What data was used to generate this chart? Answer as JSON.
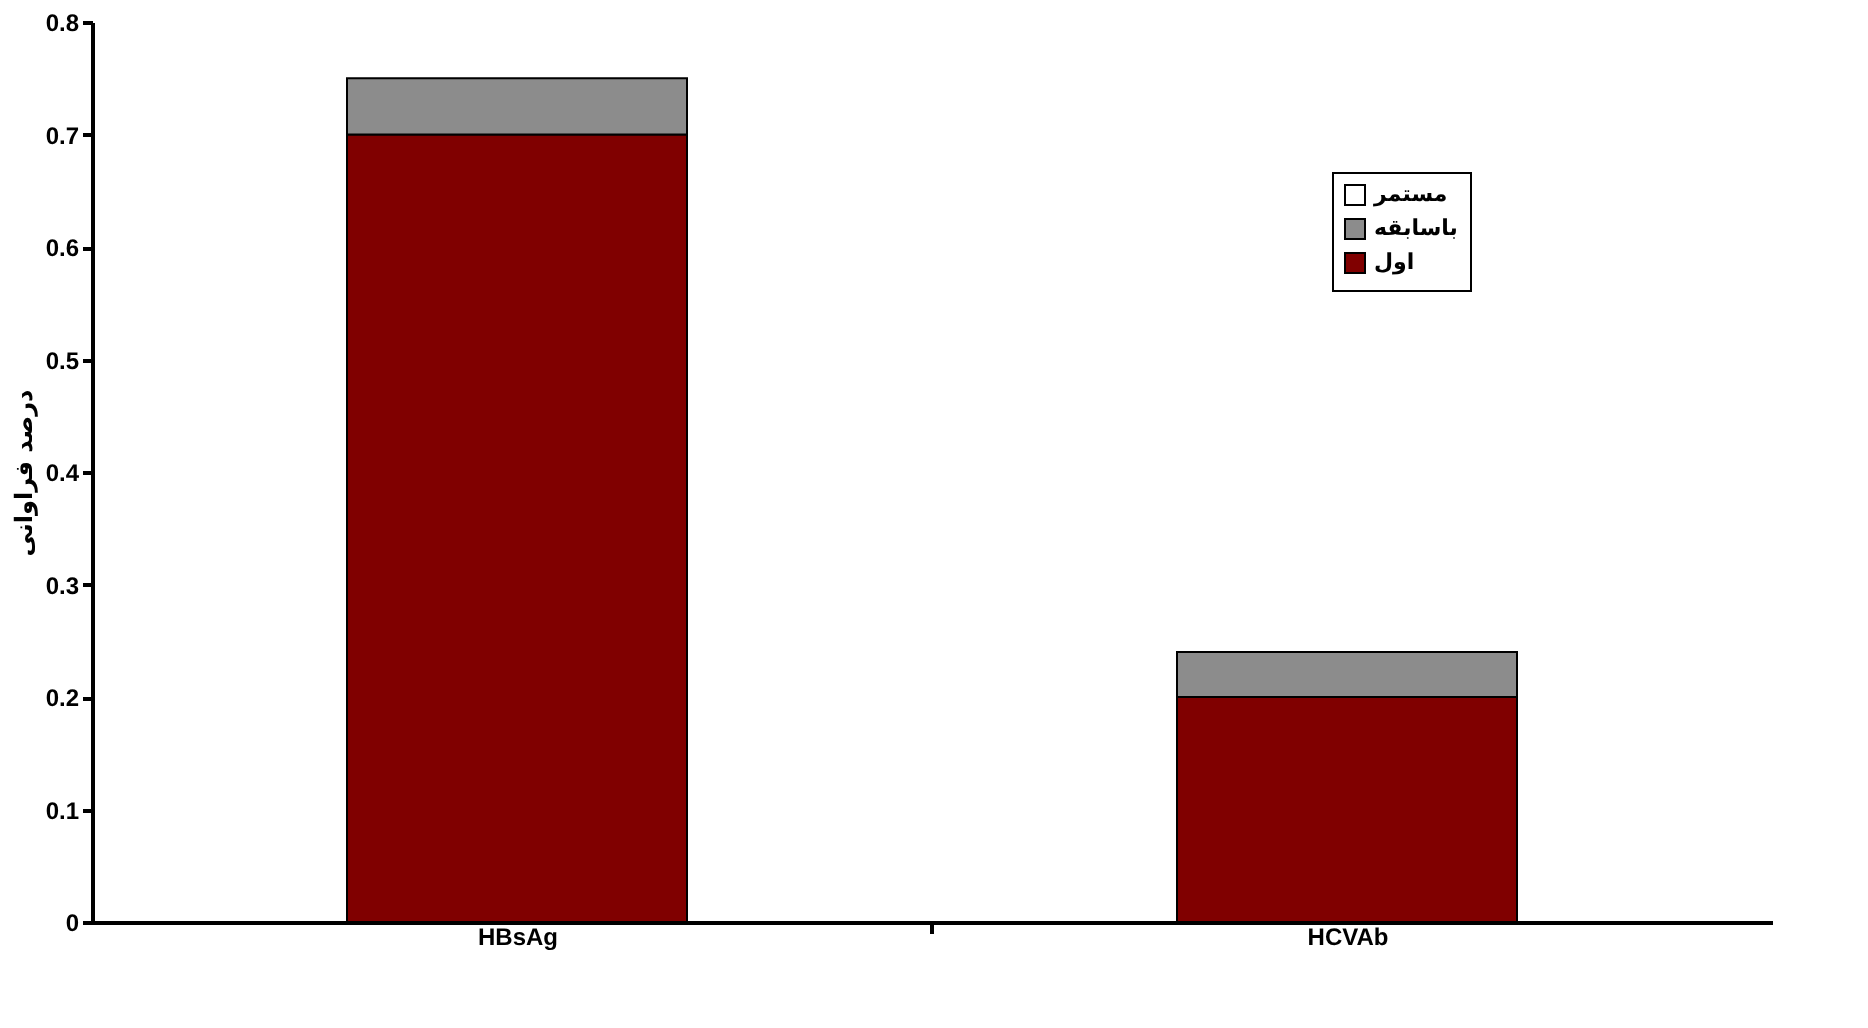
{
  "chart_data": {
    "type": "bar",
    "stacked": true,
    "ylabel": "درصد فراوانی",
    "categories": [
      "HBsAg",
      "HCVAb"
    ],
    "series": [
      {
        "name": "اول",
        "color": "#800000",
        "values": [
          0.7,
          0.2
        ]
      },
      {
        "name": "باسابقه",
        "color": "#8c8c8c",
        "values": [
          0.05,
          0.04
        ]
      },
      {
        "name": "مستمر",
        "color": "#ffffff",
        "values": [
          null,
          null
        ]
      }
    ],
    "ylim": [
      0,
      0.8
    ],
    "yticks": [
      0,
      0.1,
      0.2,
      0.3,
      0.4,
      0.5,
      0.6,
      0.7,
      0.8
    ],
    "grid": false,
    "legend": "top right"
  }
}
